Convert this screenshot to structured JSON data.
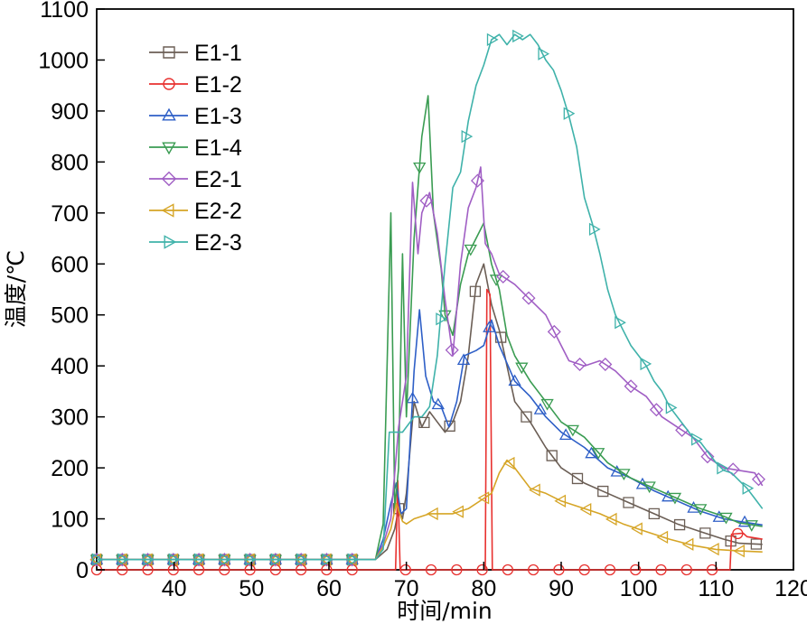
{
  "chart_data": {
    "type": "line",
    "xlabel": "时间/min",
    "ylabel": "温度/℃",
    "xlim": [
      30,
      120
    ],
    "ylim": [
      0,
      1100
    ],
    "xticks": [
      40,
      50,
      60,
      70,
      80,
      90,
      100,
      110,
      120
    ],
    "yticks": [
      0,
      100,
      200,
      300,
      400,
      500,
      600,
      700,
      800,
      900,
      1000,
      1100
    ],
    "legend_position": "top-left",
    "grid": false,
    "series": [
      {
        "name": "E1-1",
        "color": "#6b5e55",
        "marker": "square",
        "points": [
          [
            30,
            20
          ],
          [
            66,
            20
          ],
          [
            67.5,
            40
          ],
          [
            68.5,
            80
          ],
          [
            69,
            120
          ],
          [
            69.5,
            100
          ],
          [
            70,
            150
          ],
          [
            71,
            330
          ],
          [
            72,
            280
          ],
          [
            73,
            310
          ],
          [
            74,
            290
          ],
          [
            75,
            270
          ],
          [
            76,
            290
          ],
          [
            77,
            330
          ],
          [
            78,
            420
          ],
          [
            79,
            560
          ],
          [
            80,
            600
          ],
          [
            81,
            520
          ],
          [
            82,
            470
          ],
          [
            83,
            400
          ],
          [
            84,
            330
          ],
          [
            86,
            290
          ],
          [
            88,
            240
          ],
          [
            90,
            200
          ],
          [
            93,
            170
          ],
          [
            96,
            150
          ],
          [
            99,
            130
          ],
          [
            102,
            110
          ],
          [
            105,
            90
          ],
          [
            108,
            75
          ],
          [
            111,
            60
          ],
          [
            113,
            52
          ],
          [
            116,
            50
          ]
        ]
      },
      {
        "name": "E1-2",
        "color": "#e8312f",
        "marker": "circle",
        "points": [
          [
            30,
            0
          ],
          [
            68.6,
            0
          ],
          [
            68.9,
            175
          ],
          [
            69.2,
            0
          ],
          [
            80.2,
            0
          ],
          [
            80.4,
            550
          ],
          [
            80.8,
            540
          ],
          [
            81.1,
            0
          ],
          [
            111.8,
            0
          ],
          [
            112,
            70
          ],
          [
            113.5,
            72
          ],
          [
            114,
            65
          ],
          [
            116,
            60
          ]
        ]
      },
      {
        "name": "E1-3",
        "color": "#2e5fc7",
        "marker": "triangle-up",
        "points": [
          [
            30,
            20
          ],
          [
            66,
            20
          ],
          [
            67,
            60
          ],
          [
            68,
            130
          ],
          [
            68.7,
            170
          ],
          [
            69.3,
            110
          ],
          [
            70,
            120
          ],
          [
            71,
            390
          ],
          [
            71.7,
            510
          ],
          [
            72.5,
            380
          ],
          [
            73.5,
            330
          ],
          [
            74.5,
            320
          ],
          [
            75.5,
            280
          ],
          [
            76.5,
            330
          ],
          [
            77.5,
            420
          ],
          [
            79,
            430
          ],
          [
            80,
            440
          ],
          [
            81,
            490
          ],
          [
            82,
            440
          ],
          [
            84,
            370
          ],
          [
            86,
            340
          ],
          [
            88,
            300
          ],
          [
            90,
            270
          ],
          [
            93,
            240
          ],
          [
            96,
            200
          ],
          [
            99,
            180
          ],
          [
            102,
            155
          ],
          [
            105,
            135
          ],
          [
            108,
            115
          ],
          [
            111,
            100
          ],
          [
            113,
            95
          ],
          [
            116,
            88
          ]
        ]
      },
      {
        "name": "E1-4",
        "color": "#3a9c52",
        "marker": "triangle-down",
        "points": [
          [
            30,
            20
          ],
          [
            66,
            20
          ],
          [
            67,
            90
          ],
          [
            68,
            700
          ],
          [
            68.5,
            120
          ],
          [
            69,
            200
          ],
          [
            69.5,
            620
          ],
          [
            70,
            300
          ],
          [
            71,
            650
          ],
          [
            72,
            850
          ],
          [
            72.8,
            930
          ],
          [
            73.5,
            700
          ],
          [
            74.5,
            590
          ],
          [
            75,
            500
          ],
          [
            76,
            460
          ],
          [
            77,
            560
          ],
          [
            78,
            620
          ],
          [
            79,
            650
          ],
          [
            80,
            680
          ],
          [
            81,
            600
          ],
          [
            82,
            550
          ],
          [
            83,
            460
          ],
          [
            84,
            420
          ],
          [
            86,
            370
          ],
          [
            88,
            330
          ],
          [
            90,
            290
          ],
          [
            93,
            260
          ],
          [
            96,
            210
          ],
          [
            99,
            180
          ],
          [
            102,
            160
          ],
          [
            105,
            140
          ],
          [
            108,
            120
          ],
          [
            111,
            105
          ],
          [
            113,
            92
          ],
          [
            116,
            85
          ]
        ]
      },
      {
        "name": "E2-1",
        "color": "#a05ec4",
        "marker": "diamond",
        "points": [
          [
            30,
            20
          ],
          [
            66,
            20
          ],
          [
            67,
            50
          ],
          [
            68,
            100
          ],
          [
            69,
            280
          ],
          [
            70,
            380
          ],
          [
            70.8,
            760
          ],
          [
            71.5,
            620
          ],
          [
            72,
            700
          ],
          [
            73,
            740
          ],
          [
            74,
            660
          ],
          [
            75,
            530
          ],
          [
            76,
            420
          ],
          [
            77,
            600
          ],
          [
            78,
            710
          ],
          [
            79,
            750
          ],
          [
            79.6,
            790
          ],
          [
            80.2,
            640
          ],
          [
            81,
            620
          ],
          [
            82,
            580
          ],
          [
            84,
            560
          ],
          [
            86,
            530
          ],
          [
            88,
            500
          ],
          [
            89,
            470
          ],
          [
            90,
            440
          ],
          [
            91,
            410
          ],
          [
            93,
            400
          ],
          [
            95,
            410
          ],
          [
            97,
            390
          ],
          [
            99,
            360
          ],
          [
            101,
            340
          ],
          [
            103,
            300
          ],
          [
            105,
            280
          ],
          [
            107,
            260
          ],
          [
            109,
            220
          ],
          [
            111,
            200
          ],
          [
            113,
            195
          ],
          [
            115,
            190
          ],
          [
            116,
            165
          ]
        ]
      },
      {
        "name": "E2-2",
        "color": "#d6a526",
        "marker": "triangle-left",
        "points": [
          [
            30,
            20
          ],
          [
            66,
            20
          ],
          [
            67,
            45
          ],
          [
            68,
            80
          ],
          [
            68.7,
            130
          ],
          [
            69.5,
            95
          ],
          [
            70,
            90
          ],
          [
            71,
            100
          ],
          [
            73,
            110
          ],
          [
            76,
            110
          ],
          [
            78,
            120
          ],
          [
            80,
            140
          ],
          [
            81,
            150
          ],
          [
            82,
            190
          ],
          [
            83,
            215
          ],
          [
            84,
            200
          ],
          [
            86,
            160
          ],
          [
            88,
            150
          ],
          [
            90,
            135
          ],
          [
            92,
            125
          ],
          [
            95,
            110
          ],
          [
            98,
            90
          ],
          [
            101,
            75
          ],
          [
            104,
            60
          ],
          [
            107,
            48
          ],
          [
            110,
            40
          ],
          [
            113,
            37
          ],
          [
            116,
            35
          ]
        ]
      },
      {
        "name": "E2-3",
        "color": "#3fb2aa",
        "marker": "triangle-right",
        "points": [
          [
            30,
            20
          ],
          [
            66,
            20
          ],
          [
            67,
            40
          ],
          [
            67.8,
            270
          ],
          [
            69.5,
            270
          ],
          [
            70,
            280
          ],
          [
            71,
            300
          ],
          [
            72,
            300
          ],
          [
            73,
            320
          ],
          [
            74,
            420
          ],
          [
            75,
            600
          ],
          [
            76,
            750
          ],
          [
            77,
            780
          ],
          [
            78,
            880
          ],
          [
            79,
            950
          ],
          [
            80,
            990
          ],
          [
            81,
            1040
          ],
          [
            82,
            1050
          ],
          [
            83,
            1030
          ],
          [
            84,
            1050
          ],
          [
            85,
            1040
          ],
          [
            86,
            1050
          ],
          [
            87,
            1030
          ],
          [
            88,
            1000
          ],
          [
            89,
            980
          ],
          [
            90,
            940
          ],
          [
            91,
            890
          ],
          [
            92,
            830
          ],
          [
            93,
            730
          ],
          [
            94,
            680
          ],
          [
            95,
            620
          ],
          [
            96,
            550
          ],
          [
            97,
            500
          ],
          [
            98,
            470
          ],
          [
            99,
            440
          ],
          [
            100,
            420
          ],
          [
            101,
            400
          ],
          [
            102,
            370
          ],
          [
            103,
            350
          ],
          [
            104,
            320
          ],
          [
            105,
            300
          ],
          [
            106,
            280
          ],
          [
            107,
            260
          ],
          [
            108,
            250
          ],
          [
            109,
            230
          ],
          [
            110,
            210
          ],
          [
            111,
            195
          ],
          [
            112,
            190
          ],
          [
            113,
            175
          ],
          [
            114,
            160
          ],
          [
            115,
            140
          ],
          [
            116,
            120
          ]
        ]
      }
    ]
  }
}
